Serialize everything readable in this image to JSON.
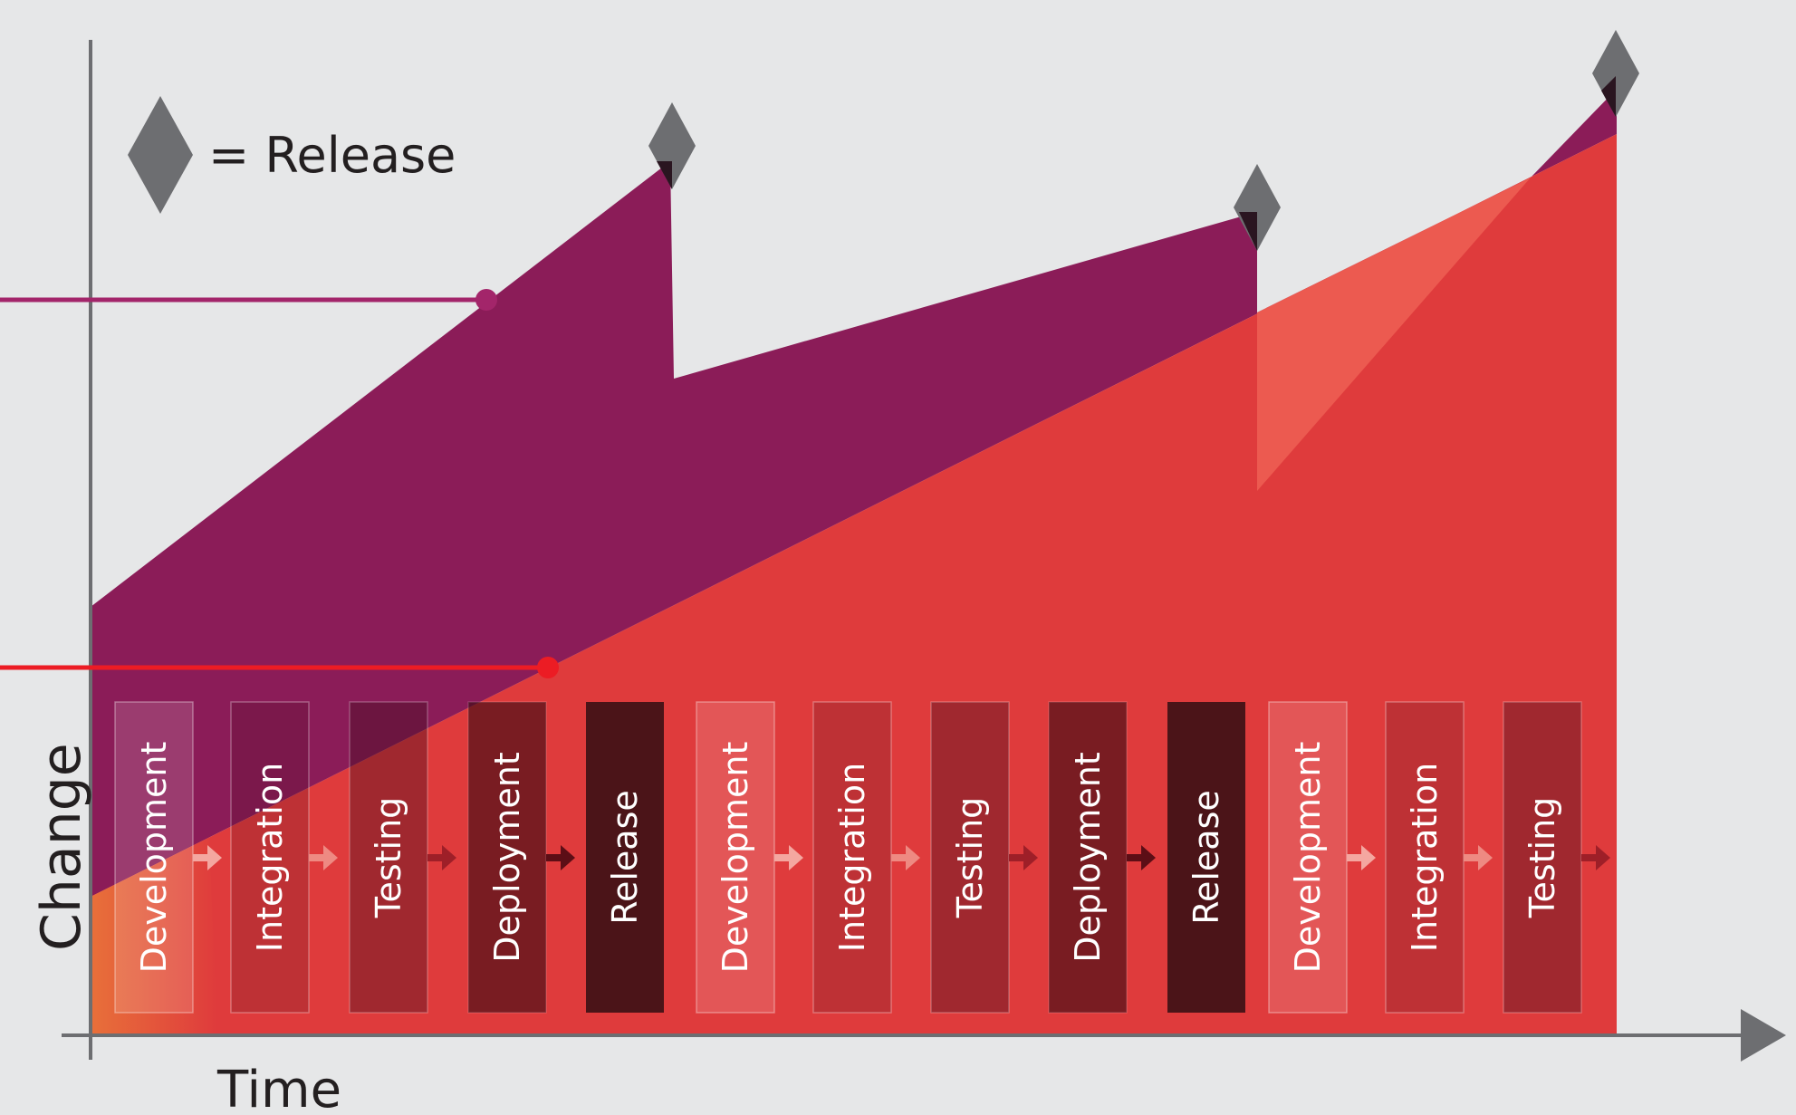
{
  "legend": {
    "label": "= Release",
    "icon": "diamond-icon"
  },
  "axes": {
    "y_label": "Change",
    "x_label": "Time"
  },
  "stages": [
    {
      "label": "Development",
      "kind": "development"
    },
    {
      "label": "Integration",
      "kind": "integration"
    },
    {
      "label": "Testing",
      "kind": "testing"
    },
    {
      "label": "Deployment",
      "kind": "deployment"
    },
    {
      "label": "Release",
      "kind": "release"
    },
    {
      "label": "Development",
      "kind": "development"
    },
    {
      "label": "Integration",
      "kind": "integration"
    },
    {
      "label": "Testing",
      "kind": "testing"
    },
    {
      "label": "Deployment",
      "kind": "deployment"
    },
    {
      "label": "Release",
      "kind": "release"
    },
    {
      "label": "Development",
      "kind": "development"
    },
    {
      "label": "Integration",
      "kind": "integration"
    },
    {
      "label": "Testing",
      "kind": "testing"
    }
  ],
  "colors": {
    "background": "#e6e7e8",
    "axis": "#6d6e71",
    "purple": "#8b1c58",
    "red": "#df3b3c",
    "light_red": "#ec5a50",
    "orange": "#e87036",
    "diamond": "#6d6e71",
    "marker_purple": "#a3256a",
    "marker_red": "#ec1c24"
  }
}
